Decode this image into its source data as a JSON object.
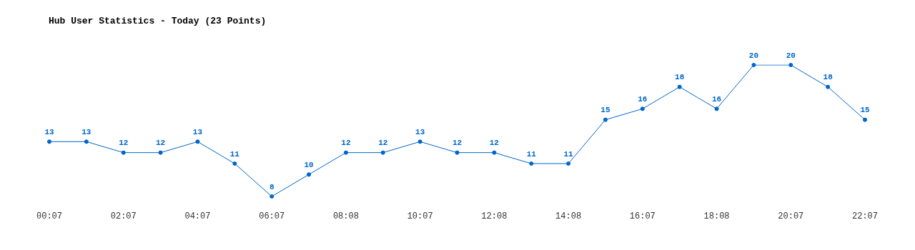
{
  "chart_data": {
    "type": "line",
    "title": "Hub User Statistics - Today (23 Points)",
    "categories": [
      "00:07",
      null,
      "02:07",
      null,
      "04:07",
      null,
      "06:07",
      null,
      "08:08",
      null,
      "10:07",
      null,
      "12:08",
      null,
      "14:08",
      null,
      "16:07",
      null,
      "18:08",
      null,
      "20:07",
      null,
      "22:07"
    ],
    "series": [
      {
        "color": "#0066cc",
        "values": [
          13,
          13,
          12,
          12,
          13,
          11,
          8,
          10,
          12,
          12,
          13,
          12,
          12,
          11,
          11,
          15,
          16,
          18,
          16,
          20,
          20,
          18,
          15
        ]
      }
    ],
    "data_labels": true,
    "marker": "circle",
    "grid": false
  }
}
